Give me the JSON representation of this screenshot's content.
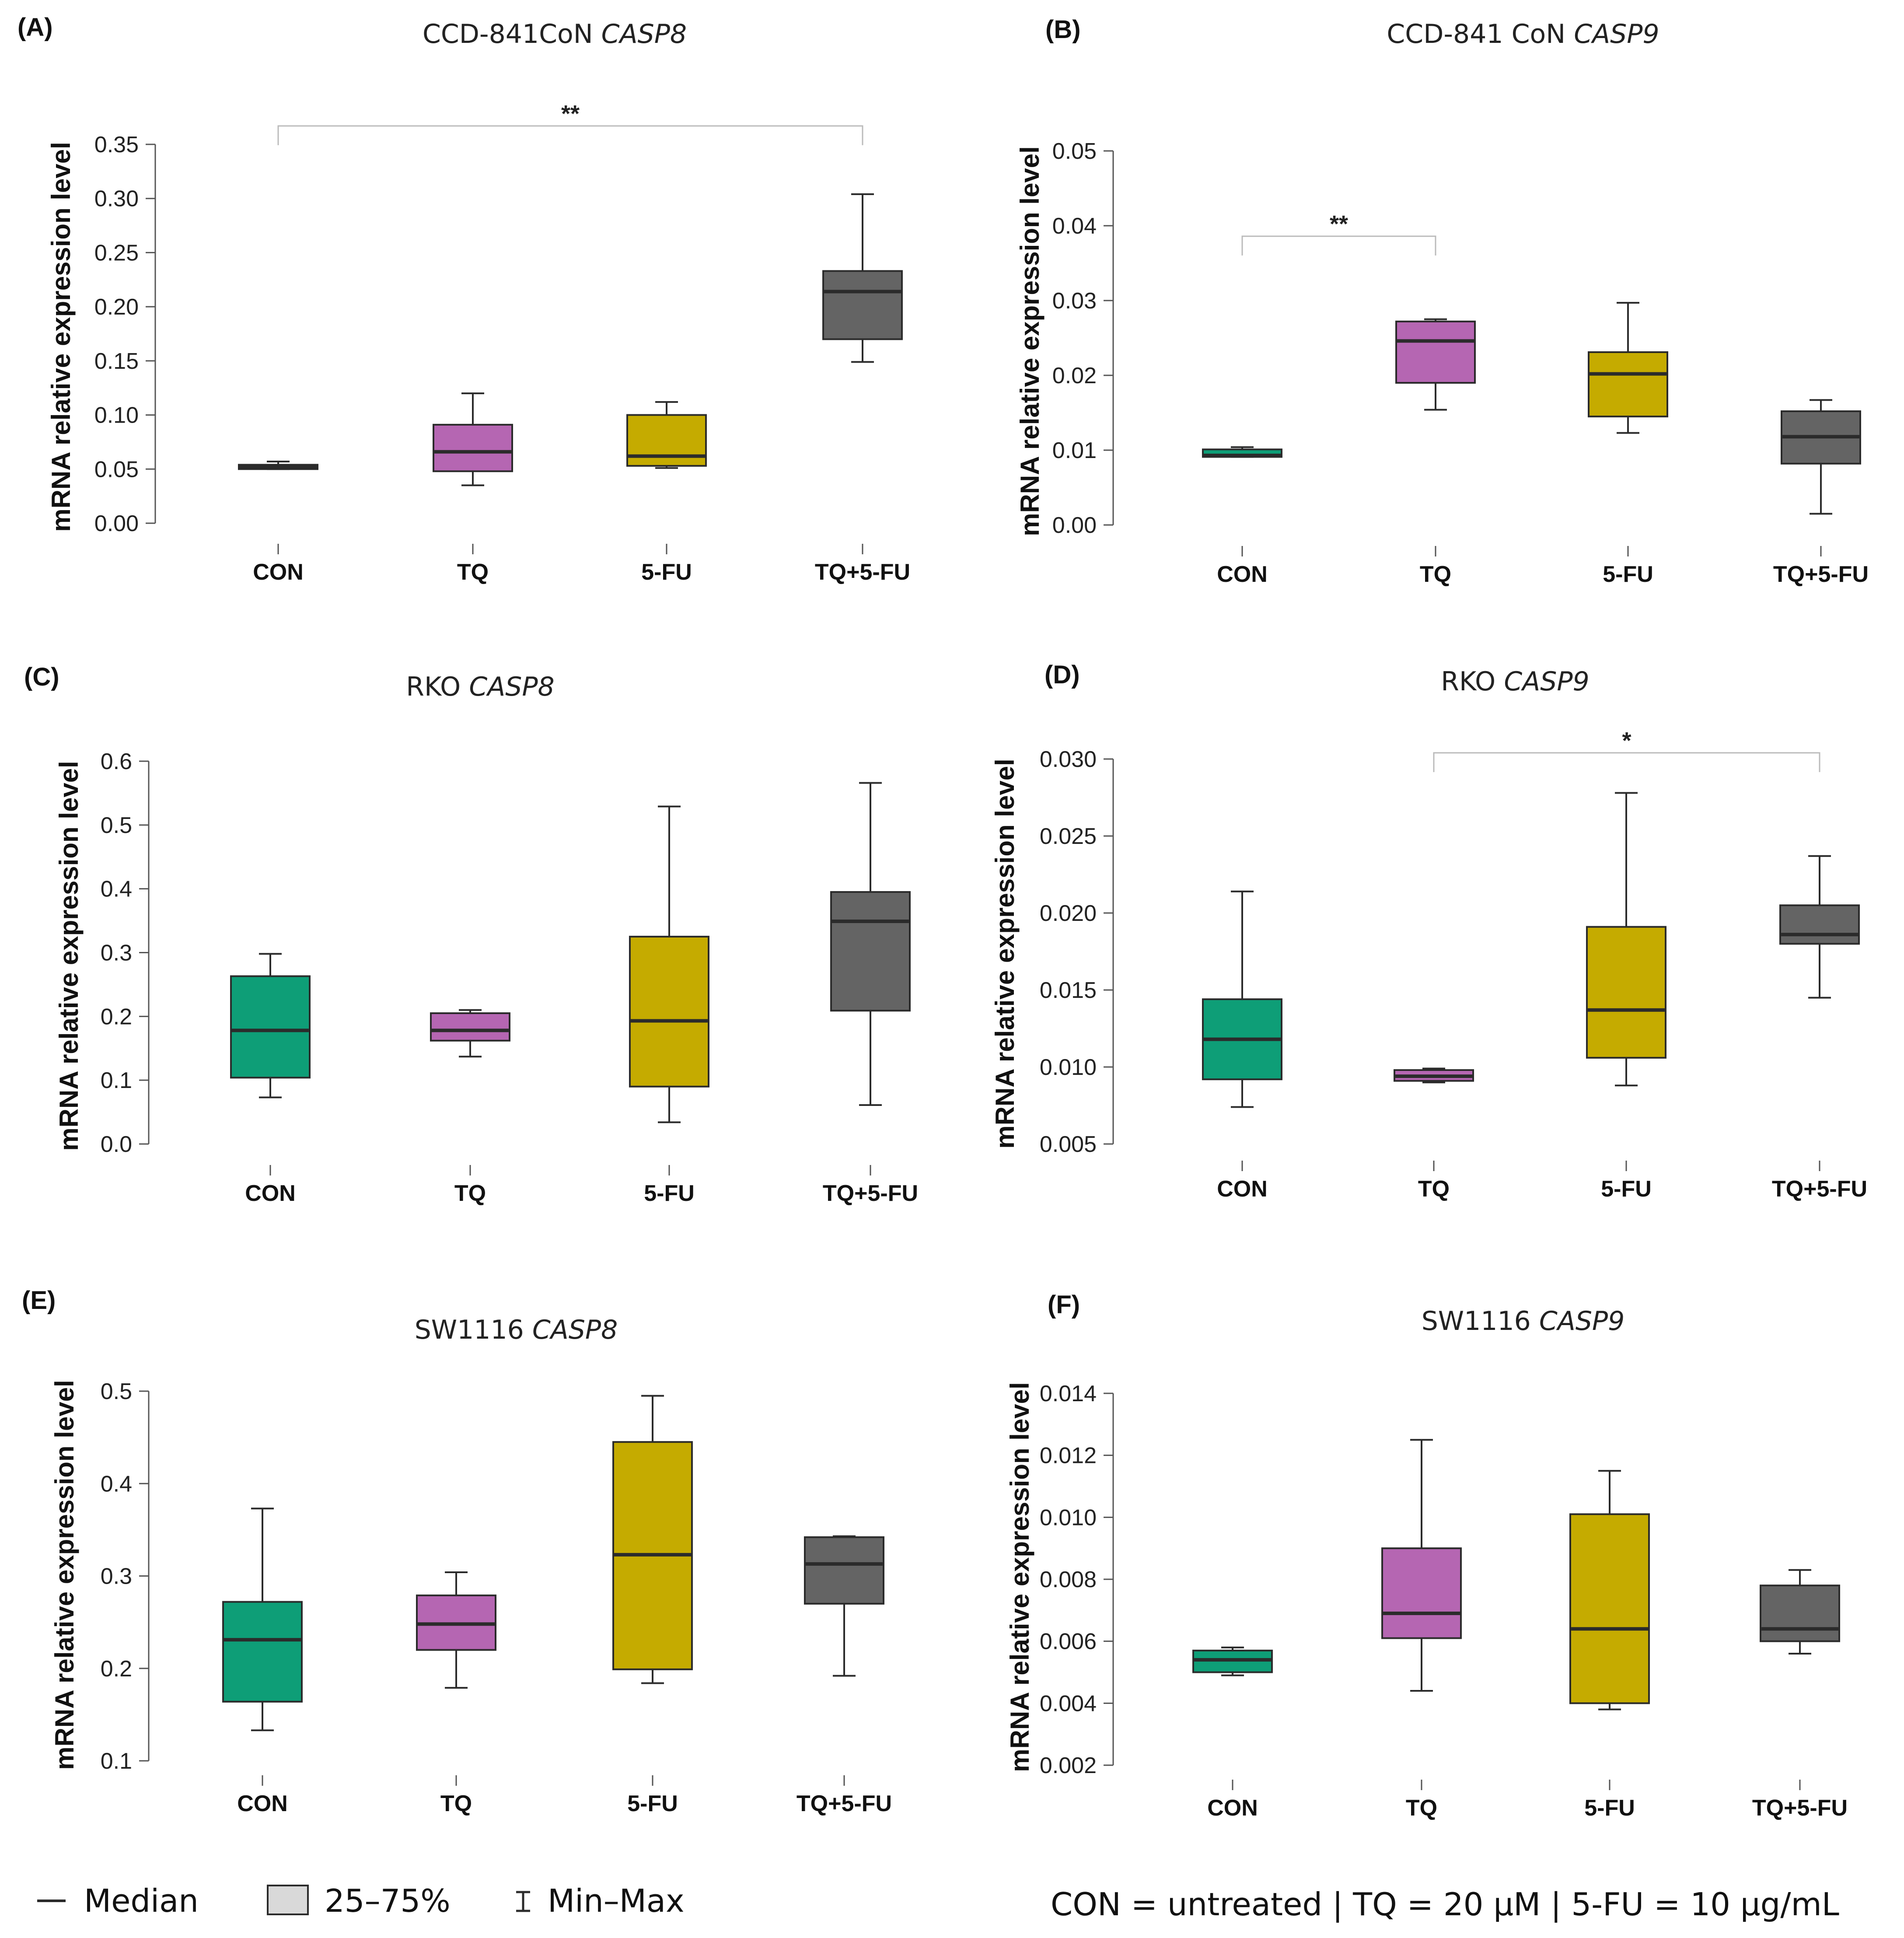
{
  "colors": {
    "CON": "#0e9e77",
    "TQ": "#b566b2",
    "5-FU": "#c5ab00",
    "TQ+5-FU": "#646464",
    "stroke": "#2b2b2b",
    "bracket": "#bbbbbb"
  },
  "chart_data": [
    {
      "type": "box",
      "panel": "(A)",
      "title_prefix": "CCD-841CoN ",
      "title_gene": "CASP8",
      "ylabel": "mRNA relative expression level",
      "ylim": [
        0.0,
        0.35
      ],
      "yticks": [
        0.0,
        0.05,
        0.1,
        0.15,
        0.2,
        0.25,
        0.3,
        0.35
      ],
      "ytick_labels": [
        "0.00",
        "0.05",
        "0.10",
        "0.15",
        "0.20",
        "0.25",
        "0.30",
        "0.35"
      ],
      "categories": [
        "CON",
        "TQ",
        "5-FU",
        "TQ+5-FU"
      ],
      "boxes": [
        {
          "group": "CON",
          "min": 0.05,
          "q1": 0.05,
          "median": 0.052,
          "q3": 0.054,
          "max": 0.057
        },
        {
          "group": "TQ",
          "min": 0.035,
          "q1": 0.048,
          "median": 0.066,
          "q3": 0.091,
          "max": 0.12
        },
        {
          "group": "5-FU",
          "min": 0.051,
          "q1": 0.053,
          "median": 0.062,
          "q3": 0.1,
          "max": 0.112
        },
        {
          "group": "TQ+5-FU",
          "min": 0.149,
          "q1": 0.17,
          "median": 0.214,
          "q3": 0.233,
          "max": 0.304
        }
      ],
      "significance": [
        {
          "from": "CON",
          "to": "TQ+5-FU",
          "label": "**",
          "y": 0.367
        }
      ]
    },
    {
      "type": "box",
      "panel": "(B)",
      "title_prefix": "CCD-841 CoN ",
      "title_gene": "CASP9",
      "ylabel": "mRNA relative expression level",
      "ylim": [
        0.0,
        0.05
      ],
      "yticks": [
        0.0,
        0.01,
        0.02,
        0.03,
        0.04,
        0.05
      ],
      "ytick_labels": [
        "0.00",
        "0.01",
        "0.02",
        "0.03",
        "0.04",
        "0.05"
      ],
      "categories": [
        "CON",
        "TQ",
        "5-FU",
        "TQ+5-FU"
      ],
      "boxes": [
        {
          "group": "CON",
          "min": 0.0091,
          "q1": 0.0091,
          "median": 0.0093,
          "q3": 0.0101,
          "max": 0.0104
        },
        {
          "group": "TQ",
          "min": 0.0154,
          "q1": 0.019,
          "median": 0.0246,
          "q3": 0.0272,
          "max": 0.0275
        },
        {
          "group": "5-FU",
          "min": 0.0123,
          "q1": 0.0145,
          "median": 0.0202,
          "q3": 0.0231,
          "max": 0.0297
        },
        {
          "group": "TQ+5-FU",
          "min": 0.0015,
          "q1": 0.0082,
          "median": 0.0118,
          "q3": 0.0152,
          "max": 0.0167
        }
      ],
      "significance": [
        {
          "from": "CON",
          "to": "TQ",
          "label": "**",
          "y": 0.0386
        }
      ]
    },
    {
      "type": "box",
      "panel": "(C)",
      "title_prefix": "RKO ",
      "title_gene": "CASP8",
      "ylabel": "mRNA relative expression level",
      "ylim": [
        0.0,
        0.6
      ],
      "yticks": [
        0.0,
        0.1,
        0.2,
        0.3,
        0.4,
        0.5,
        0.6
      ],
      "ytick_labels": [
        "0.0",
        "0.1",
        "0.2",
        "0.3",
        "0.4",
        "0.5",
        "0.6"
      ],
      "categories": [
        "CON",
        "TQ",
        "5-FU",
        "TQ+5-FU"
      ],
      "boxes": [
        {
          "group": "CON",
          "min": 0.073,
          "q1": 0.104,
          "median": 0.178,
          "q3": 0.263,
          "max": 0.298
        },
        {
          "group": "TQ",
          "min": 0.137,
          "q1": 0.162,
          "median": 0.178,
          "q3": 0.205,
          "max": 0.21
        },
        {
          "group": "5-FU",
          "min": 0.034,
          "q1": 0.09,
          "median": 0.193,
          "q3": 0.325,
          "max": 0.529
        },
        {
          "group": "TQ+5-FU",
          "min": 0.061,
          "q1": 0.209,
          "median": 0.349,
          "q3": 0.395,
          "max": 0.566
        }
      ],
      "significance": []
    },
    {
      "type": "box",
      "panel": "(D)",
      "title_prefix": "RKO ",
      "title_gene": "CASP9",
      "ylabel": "mRNA relative expression level",
      "ylim": [
        0.005,
        0.03
      ],
      "yticks": [
        0.005,
        0.01,
        0.015,
        0.02,
        0.025,
        0.03
      ],
      "ytick_labels": [
        "0.005",
        "0.010",
        "0.015",
        "0.020",
        "0.025",
        "0.030"
      ],
      "categories": [
        "CON",
        "TQ",
        "5-FU",
        "TQ+5-FU"
      ],
      "boxes": [
        {
          "group": "CON",
          "min": 0.0074,
          "q1": 0.0092,
          "median": 0.0118,
          "q3": 0.0144,
          "max": 0.0214
        },
        {
          "group": "TQ",
          "min": 0.009,
          "q1": 0.0091,
          "median": 0.0094,
          "q3": 0.0098,
          "max": 0.0099
        },
        {
          "group": "5-FU",
          "min": 0.0088,
          "q1": 0.0106,
          "median": 0.0137,
          "q3": 0.0191,
          "max": 0.0278
        },
        {
          "group": "TQ+5-FU",
          "min": 0.0145,
          "q1": 0.018,
          "median": 0.0186,
          "q3": 0.0205,
          "max": 0.0237
        }
      ],
      "significance": [
        {
          "from": "TQ",
          "to": "TQ+5-FU",
          "label": "*",
          "y": 0.0304
        }
      ]
    },
    {
      "type": "box",
      "panel": "(E)",
      "title_prefix": "SW1116 ",
      "title_gene": "CASP8",
      "ylabel": "mRNA relative expression level",
      "ylim": [
        0.1,
        0.5
      ],
      "yticks": [
        0.1,
        0.2,
        0.3,
        0.4,
        0.5
      ],
      "ytick_labels": [
        "0.1",
        "0.2",
        "0.3",
        "0.4",
        "0.5"
      ],
      "categories": [
        "CON",
        "TQ",
        "5-FU",
        "TQ+5-FU"
      ],
      "boxes": [
        {
          "group": "CON",
          "min": 0.133,
          "q1": 0.164,
          "median": 0.231,
          "q3": 0.272,
          "max": 0.373
        },
        {
          "group": "TQ",
          "min": 0.179,
          "q1": 0.22,
          "median": 0.248,
          "q3": 0.279,
          "max": 0.304
        },
        {
          "group": "5-FU",
          "min": 0.184,
          "q1": 0.199,
          "median": 0.323,
          "q3": 0.445,
          "max": 0.495
        },
        {
          "group": "TQ+5-FU",
          "min": 0.192,
          "q1": 0.27,
          "median": 0.313,
          "q3": 0.342,
          "max": 0.343
        }
      ],
      "significance": []
    },
    {
      "type": "box",
      "panel": "(F)",
      "title_prefix": "SW1116 ",
      "title_gene": "CASP9",
      "ylabel": "mRNA relative expression level",
      "ylim": [
        0.002,
        0.014
      ],
      "yticks": [
        0.002,
        0.004,
        0.006,
        0.008,
        0.01,
        0.012,
        0.014
      ],
      "ytick_labels": [
        "0.002",
        "0.004",
        "0.006",
        "0.008",
        "0.010",
        "0.012",
        "0.014"
      ],
      "categories": [
        "CON",
        "TQ",
        "5-FU",
        "TQ+5-FU"
      ],
      "boxes": [
        {
          "group": "CON",
          "min": 0.0049,
          "q1": 0.005,
          "median": 0.0054,
          "q3": 0.0057,
          "max": 0.0058
        },
        {
          "group": "TQ",
          "min": 0.0044,
          "q1": 0.0061,
          "median": 0.0069,
          "q3": 0.009,
          "max": 0.0125
        },
        {
          "group": "5-FU",
          "min": 0.0038,
          "q1": 0.004,
          "median": 0.0064,
          "q3": 0.0101,
          "max": 0.0115
        },
        {
          "group": "TQ+5-FU",
          "min": 0.0056,
          "q1": 0.006,
          "median": 0.0064,
          "q3": 0.0078,
          "max": 0.0083
        }
      ],
      "significance": []
    }
  ],
  "legend": {
    "median_label": "Median",
    "box_label": "25–75%",
    "whisker_label": "Min–Max",
    "box_color": "#d9d9d9"
  },
  "footer": {
    "note": "CON = untreated | TQ = 20 μM | 5-FU = 10 μg/mL"
  }
}
